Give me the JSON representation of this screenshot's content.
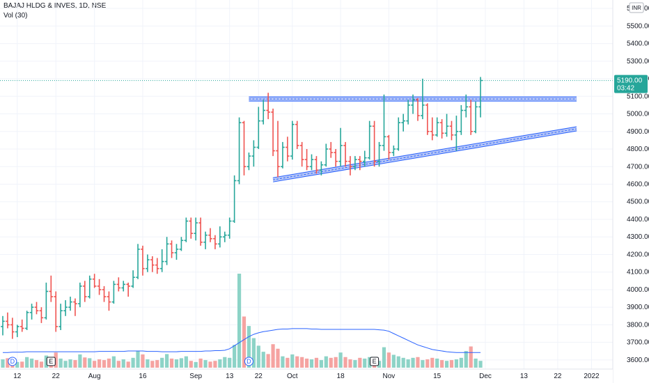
{
  "header": {
    "title": "BAJAJ HLDG & INVES, 1D, NSE",
    "volume_label": "Vol (30)",
    "currency_badge": "INR"
  },
  "last_price": {
    "price_label": "5190.00",
    "countdown": "03:42",
    "value": 5190
  },
  "colors": {
    "up": "#26a69a",
    "down": "#ef5350",
    "vol_up": "#8dd3c7",
    "vol_down": "#f5a3a1",
    "vol_ma": "#2962ff",
    "trendline": "#2962ff",
    "trendline_fill": "#b9c8f5",
    "grid": "#f0f3fa",
    "last_price_line": "#26a69a"
  },
  "chart_data": {
    "type": "ohlc",
    "symbol": "BAJAJ HLDG & INVES",
    "interval": "1D",
    "exchange": "NSE",
    "y_ticks": [
      3600,
      3700,
      3800,
      3900,
      4000,
      4100,
      4200,
      4300,
      4400,
      4500,
      4600,
      4700,
      4800,
      4900,
      5000,
      5100,
      5200,
      5300,
      5400,
      5500,
      5600
    ],
    "y_tick_labels": [
      "3600.00",
      "3700.00",
      "3800.00",
      "3900.00",
      "4000.00",
      "4100.00",
      "4200.00",
      "4300.00",
      "4400.00",
      "4500.00",
      "4600.00",
      "4700.00",
      "4800.00",
      "4900.00",
      "5000.00",
      "5100.00",
      "5200.00",
      "5300.00",
      "5400.00",
      "5500.00",
      "5600.00"
    ],
    "x_ticks": [
      {
        "label": "12",
        "bar": 3
      },
      {
        "label": "22",
        "bar": 11
      },
      {
        "label": "Aug",
        "bar": 19
      },
      {
        "label": "16",
        "bar": 29
      },
      {
        "label": "Sep",
        "bar": 40
      },
      {
        "label": "13",
        "bar": 47
      },
      {
        "label": "22",
        "bar": 53
      },
      {
        "label": "Oct",
        "bar": 60
      },
      {
        "label": "18",
        "bar": 70
      },
      {
        "label": "Nov",
        "bar": 80
      },
      {
        "label": "15",
        "bar": 90
      },
      {
        "label": "Dec",
        "bar": 100
      },
      {
        "label": "13",
        "bar": 108
      },
      {
        "label": "22",
        "bar": 115
      },
      {
        "label": "2022",
        "bar": 122
      }
    ],
    "ohlc": [
      [
        3790,
        3850,
        3740,
        3820
      ],
      [
        3820,
        3870,
        3780,
        3800
      ],
      [
        3800,
        3840,
        3720,
        3760
      ],
      [
        3760,
        3800,
        3730,
        3790
      ],
      [
        3790,
        3830,
        3760,
        3780
      ],
      [
        3780,
        3880,
        3770,
        3870
      ],
      [
        3870,
        3920,
        3830,
        3900
      ],
      [
        3900,
        3930,
        3860,
        3880
      ],
      [
        3880,
        3900,
        3810,
        3840
      ],
      [
        3840,
        4040,
        3830,
        3990
      ],
      [
        3990,
        4080,
        3930,
        3960
      ],
      [
        3960,
        3990,
        3760,
        3790
      ],
      [
        3790,
        3920,
        3770,
        3880
      ],
      [
        3880,
        3940,
        3850,
        3900
      ],
      [
        3900,
        3960,
        3880,
        3930
      ],
      [
        3930,
        3950,
        3850,
        3920
      ],
      [
        3920,
        4040,
        3900,
        4020
      ],
      [
        4020,
        4050,
        3930,
        3960
      ],
      [
        3960,
        4080,
        3950,
        4060
      ],
      [
        4060,
        4090,
        4010,
        4020
      ],
      [
        4020,
        4060,
        3970,
        4000
      ],
      [
        4000,
        4020,
        3930,
        3960
      ],
      [
        3960,
        3990,
        3880,
        3930
      ],
      [
        3930,
        4050,
        3920,
        4030
      ],
      [
        4030,
        4070,
        3990,
        4010
      ],
      [
        4010,
        4050,
        3990,
        4030
      ],
      [
        4030,
        4040,
        3960,
        4020
      ],
      [
        4020,
        4110,
        4010,
        4070
      ],
      [
        4070,
        4260,
        4060,
        4230
      ],
      [
        4230,
        4250,
        4080,
        4120
      ],
      [
        4120,
        4200,
        4100,
        4170
      ],
      [
        4170,
        4190,
        4100,
        4140
      ],
      [
        4140,
        4180,
        4090,
        4120
      ],
      [
        4120,
        4230,
        4100,
        4160
      ],
      [
        4160,
        4300,
        4140,
        4260
      ],
      [
        4260,
        4280,
        4180,
        4210
      ],
      [
        4210,
        4260,
        4170,
        4230
      ],
      [
        4230,
        4300,
        4220,
        4280
      ],
      [
        4280,
        4410,
        4270,
        4390
      ],
      [
        4390,
        4410,
        4290,
        4320
      ],
      [
        4320,
        4410,
        4280,
        4380
      ],
      [
        4380,
        4410,
        4250,
        4270
      ],
      [
        4270,
        4330,
        4230,
        4310
      ],
      [
        4310,
        4350,
        4270,
        4290
      ],
      [
        4290,
        4310,
        4230,
        4260
      ],
      [
        4260,
        4360,
        4240,
        4300
      ],
      [
        4300,
        4330,
        4270,
        4310
      ],
      [
        4310,
        4410,
        4290,
        4390
      ],
      [
        4390,
        4650,
        4380,
        4620
      ],
      [
        4620,
        4980,
        4600,
        4950
      ],
      [
        4950,
        4960,
        4650,
        4700
      ],
      [
        4700,
        4780,
        4680,
        4760
      ],
      [
        4760,
        4850,
        4700,
        4810
      ],
      [
        4810,
        5040,
        4800,
        4960
      ],
      [
        4960,
        5080,
        4940,
        5020
      ],
      [
        5020,
        5120,
        4970,
        5010
      ],
      [
        5010,
        5030,
        4760,
        4790
      ],
      [
        4790,
        4960,
        4640,
        4700
      ],
      [
        4700,
        4840,
        4690,
        4810
      ],
      [
        4810,
        4870,
        4730,
        4760
      ],
      [
        4760,
        4960,
        4740,
        4940
      ],
      [
        4940,
        4960,
        4800,
        4820
      ],
      [
        4820,
        4840,
        4700,
        4740
      ],
      [
        4740,
        4800,
        4680,
        4700
      ],
      [
        4700,
        4770,
        4680,
        4740
      ],
      [
        4740,
        4760,
        4660,
        4680
      ],
      [
        4680,
        4730,
        4650,
        4710
      ],
      [
        4710,
        4830,
        4700,
        4800
      ],
      [
        4800,
        4840,
        4750,
        4780
      ],
      [
        4780,
        4800,
        4700,
        4730
      ],
      [
        4730,
        4920,
        4700,
        4820
      ],
      [
        4820,
        4840,
        4700,
        4730
      ],
      [
        4730,
        4760,
        4650,
        4700
      ],
      [
        4700,
        4760,
        4680,
        4740
      ],
      [
        4740,
        4760,
        4680,
        4730
      ],
      [
        4730,
        4790,
        4700,
        4750
      ],
      [
        4750,
        4960,
        4740,
        4930
      ],
      [
        4930,
        4960,
        4700,
        4730
      ],
      [
        4730,
        4840,
        4700,
        4820
      ],
      [
        4820,
        5110,
        4790,
        4870
      ],
      [
        4870,
        4880,
        4740,
        4780
      ],
      [
        4780,
        4820,
        4760,
        4800
      ],
      [
        4800,
        4980,
        4790,
        4950
      ],
      [
        4950,
        5000,
        4900,
        4960
      ],
      [
        4960,
        5080,
        4940,
        5050
      ],
      [
        5050,
        5110,
        5000,
        5080
      ],
      [
        5080,
        5090,
        4960,
        4990
      ],
      [
        4990,
        5200,
        4970,
        5050
      ],
      [
        5050,
        5060,
        4880,
        4900
      ],
      [
        4900,
        4980,
        4850,
        4880
      ],
      [
        4880,
        4980,
        4870,
        4950
      ],
      [
        4950,
        4970,
        4860,
        4890
      ],
      [
        4890,
        5000,
        4870,
        4930
      ],
      [
        4930,
        4960,
        4850,
        4880
      ],
      [
        4880,
        4990,
        4790,
        4900
      ],
      [
        4900,
        5050,
        4880,
        5020
      ],
      [
        5020,
        5110,
        4980,
        5040
      ],
      [
        5040,
        5080,
        4880,
        4900
      ],
      [
        4900,
        5070,
        4890,
        5040
      ],
      [
        5040,
        5210,
        4980,
        5190
      ]
    ],
    "volume_ma30": [
      40,
      40,
      41,
      41,
      41,
      42,
      42,
      42,
      42,
      42,
      42,
      42,
      42,
      42,
      42,
      42,
      42,
      42,
      42,
      42,
      43,
      43,
      43,
      43,
      43,
      43,
      44,
      44,
      44,
      44,
      43,
      43,
      43,
      42,
      42,
      42,
      42,
      43,
      43,
      43,
      43,
      43,
      44,
      44,
      45,
      45,
      46,
      50,
      58,
      66,
      74,
      82,
      88,
      92,
      95,
      97,
      99,
      101,
      102,
      102,
      103,
      103,
      103,
      103,
      102,
      102,
      101,
      101,
      101,
      101,
      101,
      101,
      101,
      101,
      101,
      101,
      101,
      101,
      100,
      99,
      96,
      90,
      84,
      78,
      72,
      66,
      60,
      56,
      52,
      48,
      46,
      44,
      42,
      41,
      40,
      40,
      40,
      40,
      40,
      40
    ],
    "volume": [
      22,
      25,
      18,
      15,
      16,
      28,
      24,
      20,
      16,
      32,
      26,
      40,
      24,
      18,
      22,
      20,
      35,
      27,
      25,
      18,
      22,
      20,
      24,
      30,
      18,
      22,
      16,
      26,
      44,
      35,
      22,
      18,
      20,
      26,
      36,
      24,
      22,
      25,
      30,
      18,
      15,
      24,
      20,
      16,
      18,
      22,
      28,
      26,
      60,
      248,
      135,
      110,
      78,
      58,
      42,
      36,
      62,
      50,
      30,
      26,
      35,
      30,
      28,
      24,
      22,
      26,
      20,
      30,
      26,
      28,
      40,
      28,
      22,
      20,
      26,
      24,
      28,
      22,
      18,
      54,
      40,
      34,
      30,
      26,
      22,
      26,
      28,
      20,
      22,
      26,
      24,
      20,
      18,
      20,
      22,
      26,
      44,
      56,
      24,
      18
    ],
    "events": [
      {
        "label": "D",
        "bar": 2
      },
      {
        "label": "E",
        "bar": 10
      },
      {
        "label": "D",
        "bar": 51
      },
      {
        "label": "E",
        "bar": 77
      }
    ],
    "trendlines": [
      {
        "name": "resistance",
        "from": {
          "bar": 51,
          "price": 5085
        },
        "to": {
          "bar": 122,
          "price": 5085
        }
      },
      {
        "name": "support",
        "from": {
          "bar": 56,
          "price": 4625
        },
        "to": {
          "bar": 122,
          "price": 4915
        }
      }
    ],
    "ylim": [
      3560,
      5640
    ],
    "grid": true
  }
}
